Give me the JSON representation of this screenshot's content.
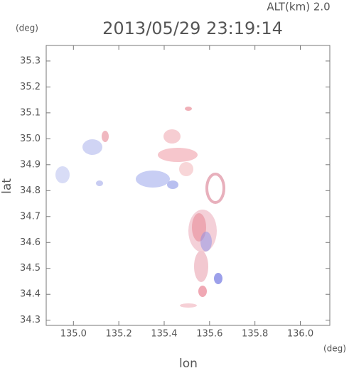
{
  "chart_data": {
    "type": "map",
    "title": "2013/05/29 23:19:14",
    "subtitle": "ALT(km)  2.0",
    "y_unit": "(deg)",
    "x_unit": "(deg)",
    "xlabel": "lon",
    "ylabel": "lat",
    "xlim": [
      134.88,
      136.13
    ],
    "ylim": [
      34.28,
      35.36
    ],
    "xticks": [
      {
        "value": 135,
        "label": "135.0"
      },
      135.2,
      135.4,
      135.6,
      135.8,
      {
        "value": 136,
        "label": "136.0"
      }
    ],
    "yticks": [
      34.3,
      34.4,
      34.5,
      34.6,
      34.7,
      34.8,
      34.9,
      {
        "value": 35,
        "label": "35.0"
      },
      35.1,
      35.2,
      35.3
    ]
  }
}
